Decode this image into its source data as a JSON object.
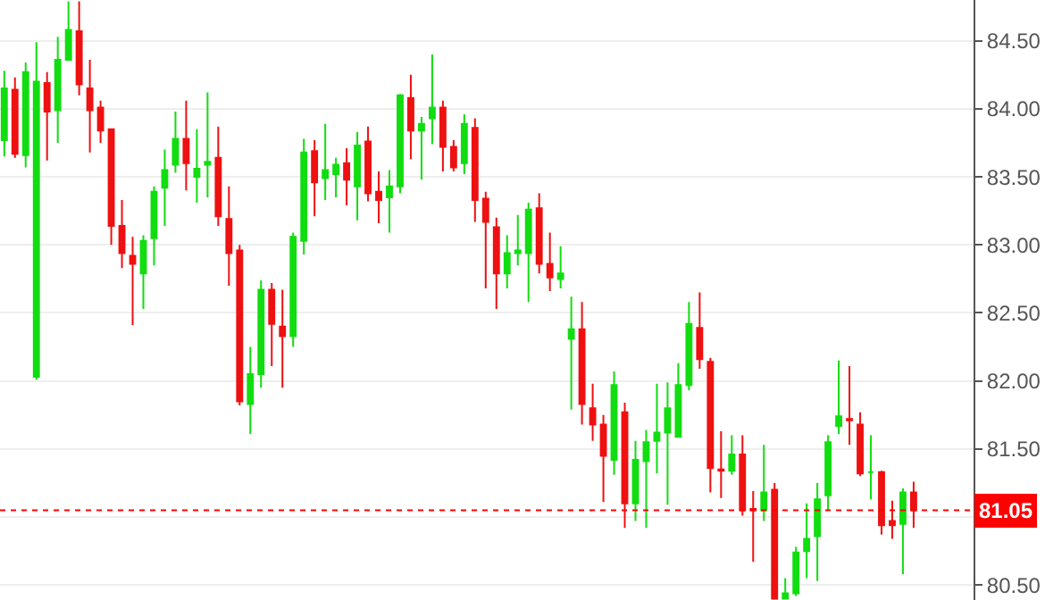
{
  "chart_data": {
    "type": "candlestick",
    "categories": [
      null,
      null,
      null,
      null,
      null,
      null,
      null,
      null,
      null,
      null,
      null,
      null,
      null,
      null,
      null,
      null,
      null,
      null,
      null,
      null,
      null,
      null,
      null,
      null,
      null,
      null,
      null,
      null,
      null,
      null,
      null,
      null,
      null,
      null,
      null,
      null,
      null,
      null,
      null,
      null,
      null,
      null,
      null,
      null,
      null,
      null,
      null,
      null,
      null,
      null,
      null,
      null,
      null,
      null,
      null,
      null,
      null,
      null,
      null,
      null,
      null,
      null,
      null,
      null,
      null,
      null,
      null,
      null,
      null,
      null,
      null,
      null,
      null,
      null,
      null,
      null,
      null,
      null,
      null,
      null,
      null,
      null,
      null,
      null,
      null,
      null
    ],
    "ohlc": [
      [
        83.77,
        84.28,
        83.65,
        84.15
      ],
      [
        84.14,
        84.23,
        83.64,
        83.67
      ],
      [
        83.66,
        84.34,
        83.57,
        84.27
      ],
      [
        82.03,
        84.49,
        82.01,
        84.2
      ],
      [
        84.19,
        84.27,
        83.62,
        83.98
      ],
      [
        83.99,
        84.53,
        83.75,
        84.36
      ],
      [
        84.36,
        84.79,
        84.36,
        84.58
      ],
      [
        84.57,
        84.79,
        84.1,
        84.18
      ],
      [
        84.15,
        84.36,
        83.68,
        83.99
      ],
      [
        84.01,
        84.06,
        83.75,
        83.84
      ],
      [
        83.85,
        83.85,
        83.0,
        83.14
      ],
      [
        83.14,
        83.33,
        82.83,
        82.94
      ],
      [
        82.92,
        83.06,
        82.41,
        82.86
      ],
      [
        82.79,
        83.07,
        82.53,
        83.03
      ],
      [
        83.05,
        83.43,
        82.85,
        83.39
      ],
      [
        83.42,
        83.7,
        83.14,
        83.55
      ],
      [
        83.59,
        83.98,
        83.53,
        83.78
      ],
      [
        83.78,
        84.06,
        83.4,
        83.6
      ],
      [
        83.5,
        83.85,
        83.31,
        83.56
      ],
      [
        83.59,
        84.12,
        83.35,
        83.61
      ],
      [
        83.64,
        83.87,
        83.14,
        83.21
      ],
      [
        83.19,
        83.43,
        82.7,
        82.94
      ],
      [
        82.96,
        83.0,
        81.82,
        81.85
      ],
      [
        81.83,
        82.25,
        81.61,
        82.05
      ],
      [
        82.05,
        82.74,
        81.95,
        82.67
      ],
      [
        82.67,
        82.72,
        82.11,
        82.42
      ],
      [
        82.4,
        82.67,
        81.95,
        82.33
      ],
      [
        82.33,
        83.09,
        82.25,
        83.06
      ],
      [
        83.03,
        83.78,
        82.93,
        83.68
      ],
      [
        83.69,
        83.77,
        83.21,
        83.46
      ],
      [
        83.49,
        83.89,
        83.33,
        83.55
      ],
      [
        83.52,
        83.64,
        83.35,
        83.59
      ],
      [
        83.6,
        83.71,
        83.29,
        83.48
      ],
      [
        83.43,
        83.83,
        83.18,
        83.73
      ],
      [
        83.76,
        83.87,
        83.32,
        83.38
      ],
      [
        83.39,
        83.54,
        83.16,
        83.33
      ],
      [
        83.35,
        83.55,
        83.09,
        83.43
      ],
      [
        83.43,
        84.11,
        83.38,
        84.1
      ],
      [
        84.08,
        84.25,
        83.63,
        83.84
      ],
      [
        83.84,
        83.94,
        83.48,
        83.89
      ],
      [
        83.93,
        84.4,
        83.74,
        84.01
      ],
      [
        84.01,
        84.06,
        83.54,
        83.72
      ],
      [
        83.72,
        83.77,
        83.54,
        83.57
      ],
      [
        83.6,
        83.96,
        83.52,
        83.89
      ],
      [
        83.86,
        83.93,
        83.17,
        83.33
      ],
      [
        83.34,
        83.39,
        82.68,
        83.17
      ],
      [
        83.13,
        83.2,
        82.53,
        82.79
      ],
      [
        82.79,
        83.07,
        82.68,
        82.94
      ],
      [
        82.94,
        83.22,
        82.85,
        82.96
      ],
      [
        82.94,
        83.31,
        82.58,
        83.26
      ],
      [
        83.27,
        83.38,
        82.79,
        82.86
      ],
      [
        82.86,
        83.09,
        82.66,
        82.76
      ],
      [
        82.75,
        82.99,
        82.68,
        82.79
      ],
      [
        82.31,
        82.62,
        81.79,
        82.38
      ],
      [
        82.38,
        82.58,
        81.68,
        81.83
      ],
      [
        81.8,
        81.98,
        81.56,
        81.68
      ],
      [
        81.68,
        81.75,
        81.11,
        81.45
      ],
      [
        81.42,
        82.07,
        81.31,
        81.97
      ],
      [
        81.77,
        81.84,
        80.92,
        81.1
      ],
      [
        81.1,
        81.56,
        80.97,
        81.42
      ],
      [
        81.41,
        81.64,
        80.92,
        81.55
      ],
      [
        81.56,
        81.98,
        81.32,
        81.62
      ],
      [
        81.62,
        81.99,
        81.09,
        81.8
      ],
      [
        81.59,
        82.13,
        81.59,
        81.97
      ],
      [
        81.97,
        82.58,
        81.93,
        82.42
      ],
      [
        82.39,
        82.65,
        82.09,
        82.16
      ],
      [
        82.14,
        82.17,
        81.18,
        81.36
      ],
      [
        81.35,
        81.63,
        81.14,
        81.34
      ],
      [
        81.34,
        81.6,
        81.31,
        81.46
      ],
      [
        81.46,
        81.6,
        81.01,
        81.05
      ],
      [
        81.06,
        81.19,
        80.67,
        81.05
      ],
      [
        81.05,
        81.53,
        80.97,
        81.18
      ],
      [
        81.2,
        81.25,
        80.4,
        80.4
      ],
      [
        80.4,
        80.55,
        80.4,
        80.44
      ],
      [
        80.44,
        80.78,
        80.42,
        80.74
      ],
      [
        80.75,
        81.1,
        80.55,
        80.84
      ],
      [
        80.86,
        81.25,
        80.53,
        81.13
      ],
      [
        81.16,
        81.6,
        81.05,
        81.55
      ],
      [
        81.67,
        82.15,
        81.61,
        81.74
      ],
      [
        81.72,
        82.11,
        81.53,
        81.71
      ],
      [
        81.68,
        81.77,
        81.3,
        81.32
      ],
      [
        81.33,
        81.6,
        81.13,
        81.33
      ],
      [
        81.33,
        81.34,
        80.87,
        80.94
      ],
      [
        80.97,
        81.12,
        80.84,
        80.94
      ],
      [
        80.95,
        81.21,
        80.58,
        81.18
      ],
      [
        81.18,
        81.26,
        80.92,
        81.05
      ]
    ],
    "colors": [
      "#11dd11",
      "#ee1111",
      "#11dd11",
      "#11dd11",
      "#ee1111",
      "#11dd11",
      "#11dd11",
      "#ee1111",
      "#ee1111",
      "#ee1111",
      "#ee1111",
      "#ee1111",
      "#ee1111",
      "#11dd11",
      "#11dd11",
      "#11dd11",
      "#11dd11",
      "#ee1111",
      "#11dd11",
      "#11dd11",
      "#ee1111",
      "#ee1111",
      "#ee1111",
      "#11dd11",
      "#11dd11",
      "#ee1111",
      "#ee1111",
      "#11dd11",
      "#11dd11",
      "#ee1111",
      "#11dd11",
      "#11dd11",
      "#ee1111",
      "#11dd11",
      "#ee1111",
      "#ee1111",
      "#11dd11",
      "#11dd11",
      "#ee1111",
      "#11dd11",
      "#11dd11",
      "#ee1111",
      "#ee1111",
      "#11dd11",
      "#ee1111",
      "#ee1111",
      "#ee1111",
      "#11dd11",
      "#11dd11",
      "#11dd11",
      "#ee1111",
      "#ee1111",
      "#11dd11",
      "#11dd11",
      "#ee1111",
      "#ee1111",
      "#ee1111",
      "#11dd11",
      "#ee1111",
      "#11dd11",
      "#11dd11",
      "#11dd11",
      "#11dd11",
      "#11dd11",
      "#11dd11",
      "#ee1111",
      "#ee1111",
      "#ee1111",
      "#11dd11",
      "#ee1111",
      "#ee1111",
      "#11dd11",
      "#ee1111",
      "#11dd11",
      "#11dd11",
      "#11dd11",
      "#11dd11",
      "#11dd11",
      "#11dd11",
      "#ee1111",
      "#ee1111",
      "#11dd11",
      "#ee1111",
      "#ee1111",
      "#11dd11",
      "#ee1111"
    ],
    "ylim": [
      80.39,
      84.8
    ],
    "yticks": [
      {
        "value": 80.5,
        "label": "80.50"
      },
      {
        "value": 81.0,
        "label": null
      },
      {
        "value": 81.5,
        "label": "81.50"
      },
      {
        "value": 82.0,
        "label": "82.00"
      },
      {
        "value": 82.5,
        "label": "82.50"
      },
      {
        "value": 83.0,
        "label": "83.00"
      },
      {
        "value": 83.5,
        "label": "83.50"
      },
      {
        "value": 84.0,
        "label": "84.00"
      },
      {
        "value": 84.5,
        "label": "84.50"
      }
    ],
    "ref_lines": [
      {
        "axis": "y",
        "value": 81.05,
        "label": "81.05",
        "color": "#ff0000",
        "line_style": "dotted"
      }
    ],
    "grid": "y",
    "tick_labels": "y"
  }
}
